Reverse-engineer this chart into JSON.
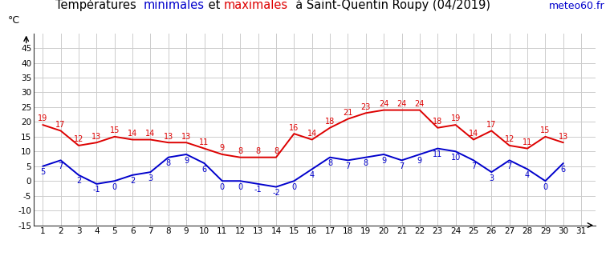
{
  "days": [
    1,
    2,
    3,
    4,
    5,
    6,
    7,
    8,
    9,
    10,
    11,
    12,
    13,
    14,
    15,
    16,
    17,
    18,
    19,
    20,
    21,
    22,
    23,
    24,
    25,
    26,
    27,
    28,
    29,
    30,
    31
  ],
  "max_temps": [
    19,
    17,
    12,
    13,
    15,
    14,
    14,
    13,
    13,
    11,
    9,
    8,
    8,
    8,
    16,
    14,
    18,
    21,
    23,
    24,
    24,
    24,
    18,
    19,
    14,
    17,
    12,
    11,
    15,
    13,
    null
  ],
  "min_temps": [
    5,
    7,
    2,
    -1,
    0,
    2,
    3,
    8,
    9,
    6,
    0,
    0,
    -1,
    -2,
    0,
    4,
    8,
    7,
    8,
    9,
    7,
    9,
    11,
    10,
    7,
    3,
    7,
    4,
    0,
    6,
    null
  ],
  "max_color": "#dd0000",
  "min_color": "#0000cc",
  "title_pieces": [
    [
      "Températures  ",
      "black"
    ],
    [
      "minimales",
      "#0000cc"
    ],
    [
      " et ",
      "black"
    ],
    [
      "maximales",
      "#dd0000"
    ],
    [
      "  à Saint-Quentin Roupy (04/2019)",
      "black"
    ]
  ],
  "watermark": "meteo60.fr",
  "watermark_color": "#0000cc",
  "ylabel": "°C",
  "xlim": [
    0.5,
    31.8
  ],
  "ylim": [
    -15,
    50
  ],
  "yticks": [
    -15,
    -10,
    -5,
    0,
    5,
    10,
    15,
    20,
    25,
    30,
    35,
    40,
    45
  ],
  "xticks": [
    1,
    2,
    3,
    4,
    5,
    6,
    7,
    8,
    9,
    10,
    11,
    12,
    13,
    14,
    15,
    16,
    17,
    18,
    19,
    20,
    21,
    22,
    23,
    24,
    25,
    26,
    27,
    28,
    29,
    30,
    31
  ],
  "grid_color": "#cccccc",
  "background_color": "#ffffff",
  "label_fontsize": 7.0,
  "title_fontsize": 10.5
}
